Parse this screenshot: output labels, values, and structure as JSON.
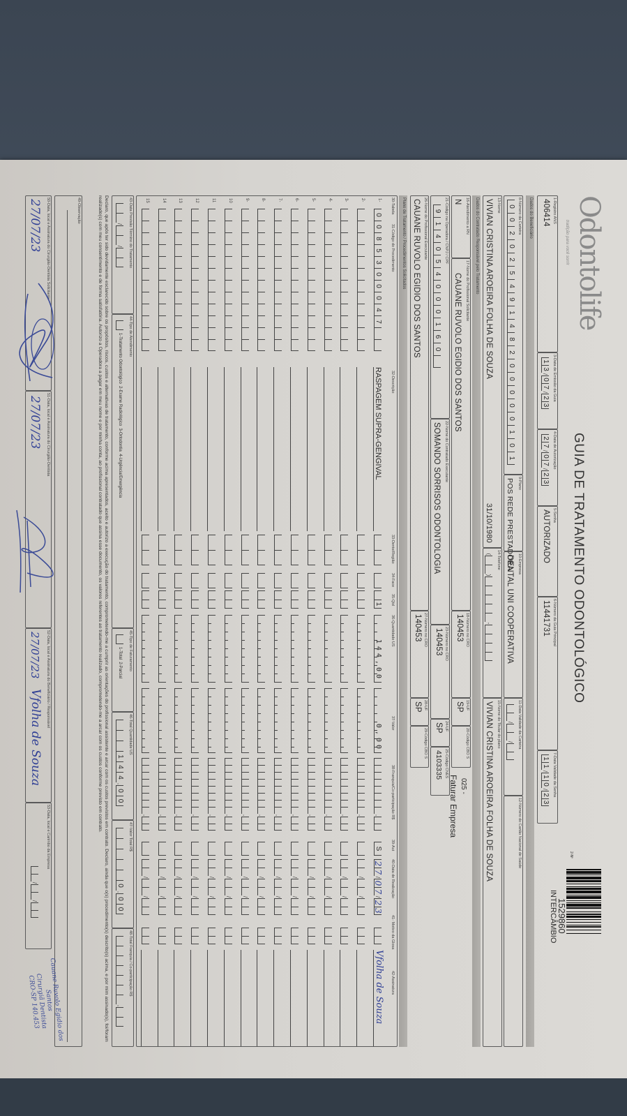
{
  "header": {
    "logo": "Odontolife",
    "tagline": "tradição para você sorrir",
    "title": "GUIA DE TRATAMENTO ODONTOLÓGICO",
    "guide_no_label": "2-Nº",
    "guide_number": "1529860",
    "guide_type": "INTERCÂMBIO"
  },
  "guide": {
    "registro_ans": {
      "label": "1-Registro ANS",
      "value": "406414"
    },
    "emissao": {
      "label": "3-Data de Emissão da Guia",
      "value": "13/07/23"
    },
    "autorizacao": {
      "label": "4-Data de Autorização",
      "value": "27/07/23"
    },
    "senha": {
      "label": "5-Senha",
      "value": "AUTORIZADO"
    },
    "guia_principal": {
      "label": "6-Número da Guia Principal",
      "value": "11441731"
    },
    "validade_senha": {
      "label": "7-Data Validade da Senha",
      "value": "11/10/23"
    }
  },
  "sections": {
    "beneficiario": "Dados do Beneficiário",
    "contratado": "Dados do Contratado Responsável pelo Tratamento",
    "plano": "Plano de Tratamento / Procedimentos Solicitados"
  },
  "beneficiary": {
    "carteira": {
      "label": "8-Número da Carteira",
      "value": "00202549148200000101"
    },
    "plano": {
      "label": "9-Plano",
      "value": "POS REDE PRESTADORA"
    },
    "empresa": {
      "label": "10-Empresa",
      "value": "DENTAL UNI COOPERATIVA"
    },
    "validade_carteira": {
      "label": "11-Data Validade da Carteira",
      "value": ""
    },
    "cns": {
      "label": "12-Número do Cartão Nacional de Saúde",
      "value": ""
    },
    "nome": {
      "label": "13-Nome",
      "value": "VIVIAN CRISTINA AROEIRA FOLHA DE SOUZA",
      "birth_date": "31/10/1980"
    },
    "telefone": {
      "label": "14-Telefone",
      "value": ""
    },
    "titular": {
      "label": "15-Nome do Titular do plano",
      "value": "VIVIAN CRISTINA AROEIRA FOLHA DE SOUZA"
    }
  },
  "provider": {
    "rn": {
      "label": "16-Atendimento a RN",
      "value": "N"
    },
    "solicitante": {
      "label": "17-Nome do Profissional Solicitante",
      "value": "CAUANE RUVOLO EGIDIO DOS SANTOS"
    },
    "cro_solicitante": {
      "label": "18-Número no CRO",
      "value": "140453"
    },
    "uf_solicitante": {
      "label": "19-UF",
      "value": "SP"
    },
    "cbo_solicitante": {
      "label": "20-Código CBO S",
      "value": ""
    },
    "billing_code": "025 -",
    "billing_note": "Faturar Empresa",
    "codigo_operadora": {
      "label": "21-Código na Operadora / CNPJ / CPF",
      "value": "914054000160"
    },
    "contratado": {
      "label": "22-Nome do Contratado Executante",
      "value": "SOMANDO SORRISOS ODONTOLOGIA"
    },
    "cro_contratado": {
      "label": "23-Número no CRO",
      "value": "140453"
    },
    "uf_contratado": {
      "label": "24-UF",
      "value": "SP"
    },
    "cnes": {
      "label": "25-Código CNES",
      "value": "4103335"
    },
    "executante": {
      "label": "26-Nome do Profissional Executante",
      "value": "CAUANE RUVOLO EGIDIO DOS SANTOS"
    },
    "cro_executante": {
      "label": "27-Número no CRO",
      "value": "140453"
    },
    "uf_executante": {
      "label": "28-UF",
      "value": "SP"
    },
    "cbo_executante": {
      "label": "29-Código CBO S",
      "value": ""
    }
  },
  "table": {
    "columns": [
      "30-Tabela",
      "31-Código do Procedimento",
      "32-Descrição",
      "33-Dente/Região",
      "34-Face",
      "35-Qtd",
      "36-Quantidade US",
      "37-Valor",
      "38-Franquia/Co-participação R$",
      "39-Aut",
      "40-Data de Realização",
      "41- Motivo da Glosa",
      "42-Assinatura"
    ],
    "row_numbers": [
      "1-",
      "2-",
      "3-",
      "4-",
      "5-",
      "6-",
      "7-",
      "8-",
      "9-",
      "10",
      "11",
      "12",
      "13",
      "14",
      "15"
    ],
    "rows": [
      {
        "codigo": "0085300047",
        "descricao": "RASPAGEM SUPRA-GENGIVAL",
        "dente": "",
        "face": "",
        "qtd": "1",
        "us": "144,00",
        "valor": "0,00",
        "franquia": "",
        "aut": "S",
        "data": "27/07/23",
        "glosa": "",
        "assinatura": "Vfolha de Souza"
      }
    ]
  },
  "totals": {
    "previsao": {
      "label": "43-Data Previsão Término do Tratamento",
      "value": ""
    },
    "tipo_atendimento": {
      "label": "44-Tipo de Atendimento",
      "options": "1-Tratamento Odontológico  2-Exame Radiológico  3-Ortodontia  4-Urgência/Emergência"
    },
    "tipo_faturamento": {
      "label": "45-Tipo de Faturamento",
      "options": "1-Total  2-Parcial"
    },
    "total_us": {
      "label": "46-Total Quantidade US",
      "value": "144,00"
    },
    "valor_total": {
      "label": "47-Valor Total R$",
      "value": "0,00"
    },
    "total_franquia": {
      "label": "48-Total Franquia / Co-participação R$",
      "value": ""
    }
  },
  "declaration": "Declaro, que após ter sido devidamente esclarecido sobre os propósitos, riscos, custos e alternativas de tratamento, conforme acima apresentados, aceito e autorizo a execução do tratamento, comprometendo-me a cumprir as orientações do profissional assistente e arcar com os custos previstos em contrato. Declaro, ainda que o(s) procedimento(s) descrito(s) acima, e por mim assinado(s), foi/foram realizado(s) com meu consentimento e de forma satisfatória. Autorizo a Operadora a pagar em meu nome e por minha conta, ao profissional contratado que assina esse documento, os valores referentes ao tratamento realizado, comprometendo-me a arcar com os custos conforme previsto em contrato.",
  "observacao": {
    "label": "49-Observação",
    "value": ""
  },
  "signatures": {
    "solicitante": {
      "label": "50-Data, local e Assinatura do Cirurgião-Dentista Solicitante",
      "date": "27/07/23"
    },
    "dentista": {
      "label": "51-Data, local e Assinatura do Cirurgião-Dentista",
      "date": "27/07/23"
    },
    "beneficiario": {
      "label": "52-Data, local e Assinatura do Beneficiário / Responsável",
      "date": "27/07/23",
      "signature": "Vfolha de Souza"
    },
    "empresa": {
      "label": "53-Data, local e Carimbo da Empresa",
      "date": ""
    },
    "stamp": [
      "Cauane Ruvolo Egidio dos Santos",
      "Cirurgiã Dentista",
      "CRO-SP 140.453"
    ]
  },
  "colors": {
    "paper": "#d6d4d0",
    "background": "#4e5b6b",
    "ink_blue": "#2f3f95",
    "strip": "#a8a6a2"
  }
}
